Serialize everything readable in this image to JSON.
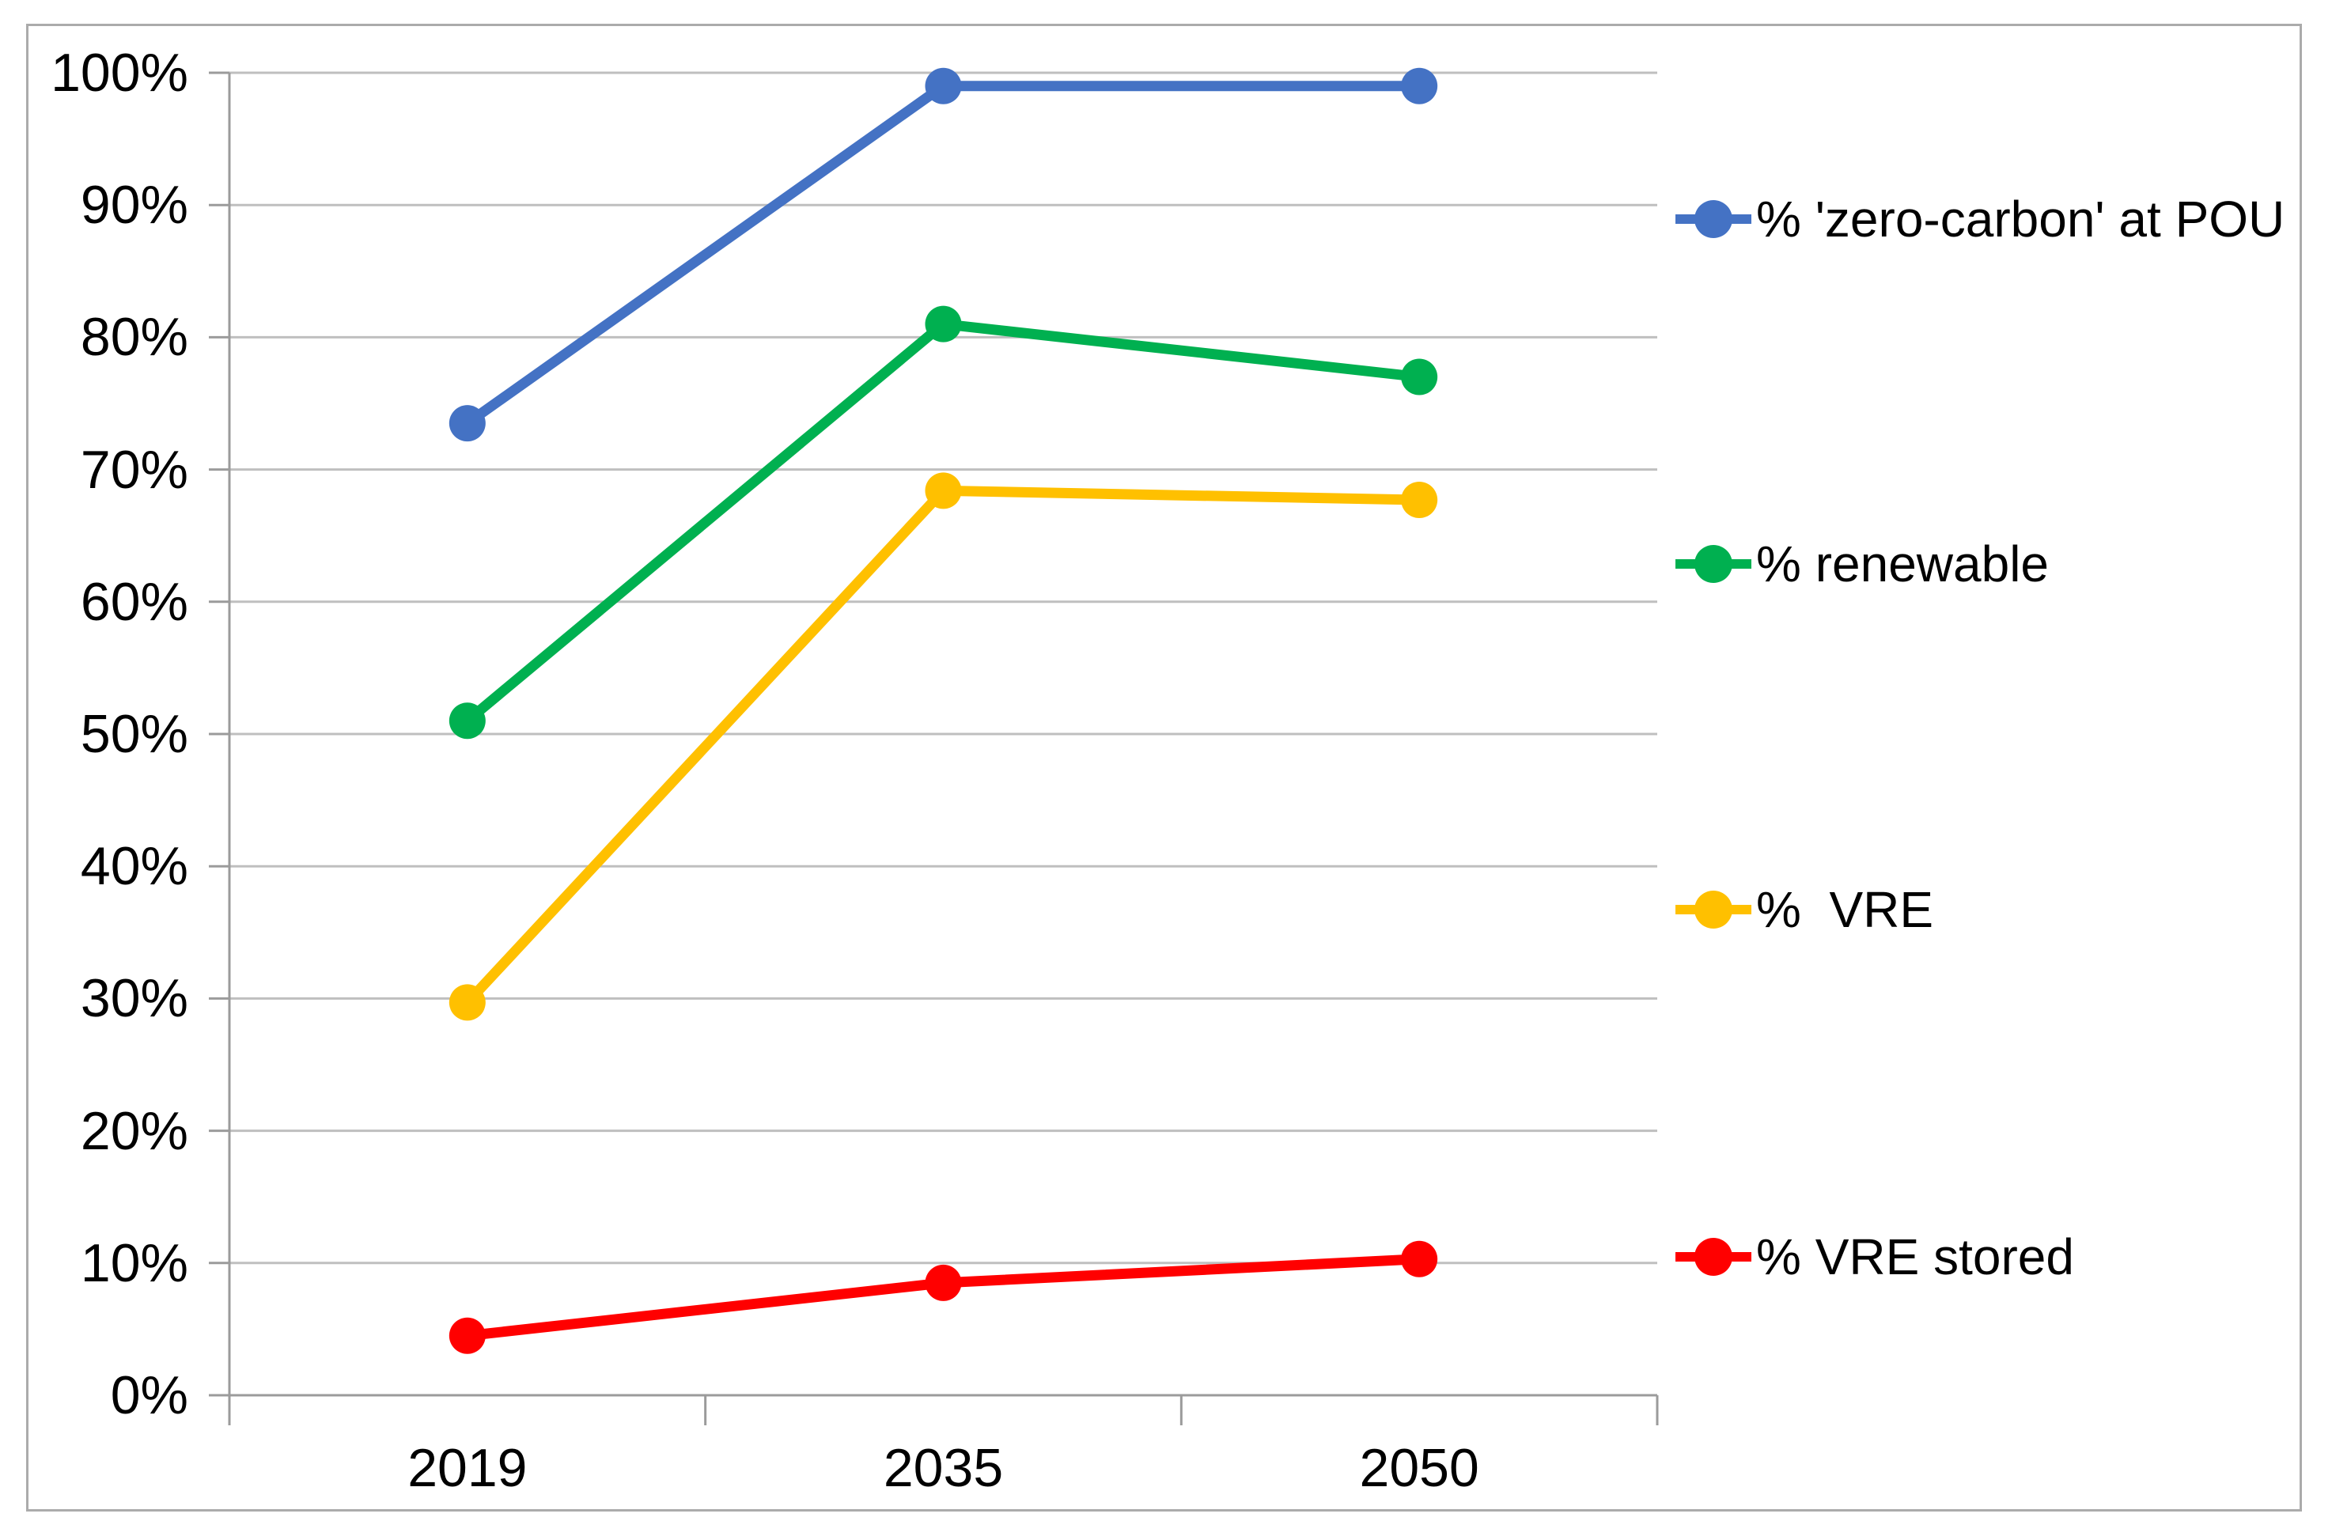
{
  "figure": {
    "background": "#FFFFFF",
    "border_color": "#ABABAB"
  },
  "chart_data": {
    "type": "line",
    "title": "",
    "xlabel": "",
    "ylabel": "",
    "categories": [
      "2019",
      "2035",
      "2050"
    ],
    "series": [
      {
        "name": "% 'zero-carbon' at POU",
        "color": "#4472C4",
        "values": [
          73.5,
          99,
          99
        ]
      },
      {
        "name": "% renewable",
        "color": "#00B050",
        "values": [
          51,
          81,
          77
        ]
      },
      {
        "name": "%  VRE",
        "color": "#FFC000",
        "values": [
          29.7,
          68.4,
          67.7
        ]
      },
      {
        "name": "% VRE stored",
        "color": "#FF0000",
        "values": [
          4.5,
          8.5,
          10.3
        ]
      }
    ],
    "ylim": [
      0,
      100
    ],
    "y_ticks": [
      "0%",
      "10%",
      "20%",
      "30%",
      "40%",
      "50%",
      "60%",
      "70%",
      "80%",
      "90%",
      "100%"
    ],
    "grid": "horizontal",
    "gridline_color": "#BFBFBF",
    "axis_color": "#9B9B9B",
    "text_color": "#000000",
    "legend_position": "right",
    "marker": "circle"
  }
}
